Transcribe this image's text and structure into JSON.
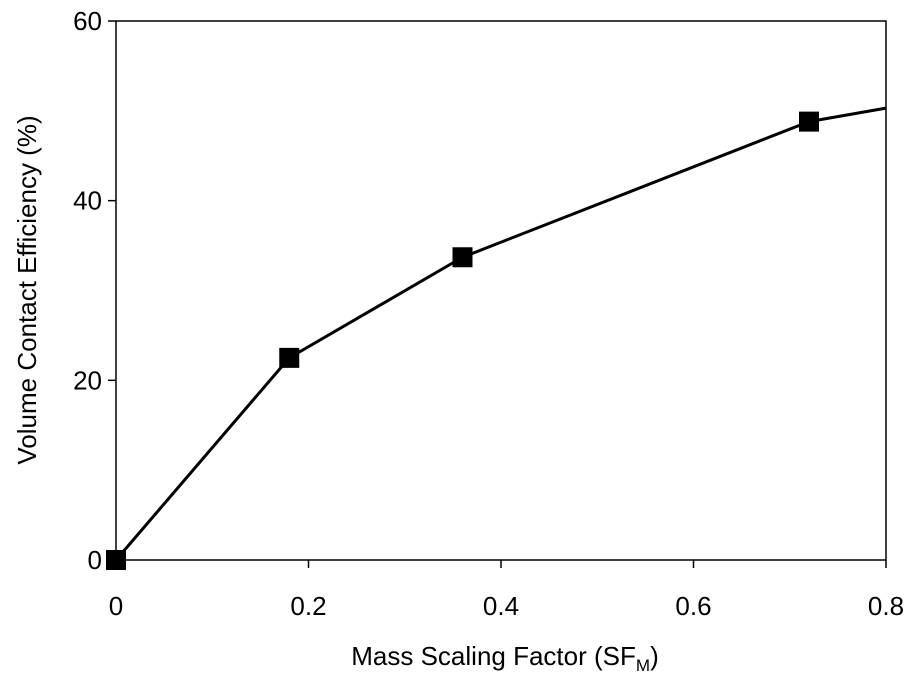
{
  "chart_data": {
    "type": "line",
    "title": "",
    "xlabel": "Mass Scaling Factor (SF",
    "xlabel_subscript": "M",
    "xlabel_suffix": ")",
    "ylabel": "Volume Contact Efficiency (%)",
    "xlim": [
      0,
      0.8
    ],
    "ylim": [
      0,
      60
    ],
    "xticks": [
      0,
      0.2,
      0.4,
      0.6,
      0.8
    ],
    "xtick_labels": [
      "0",
      "0.2",
      "0.4",
      "0.6",
      "0.8"
    ],
    "yticks": [
      0,
      20,
      40,
      60
    ],
    "ytick_labels": [
      "0",
      "20",
      "40",
      "60"
    ],
    "grid": false,
    "legend": "none",
    "series": [
      {
        "marker": "square",
        "color": "#000000",
        "points": [
          {
            "x": 0,
            "y": 0
          },
          {
            "x": 0.18,
            "y": 22.5
          },
          {
            "x": 0.36,
            "y": 33.7
          },
          {
            "x": 0.72,
            "y": 48.8
          }
        ],
        "line_extends_to": {
          "x": 0.8,
          "y": 50.3
        }
      }
    ]
  }
}
